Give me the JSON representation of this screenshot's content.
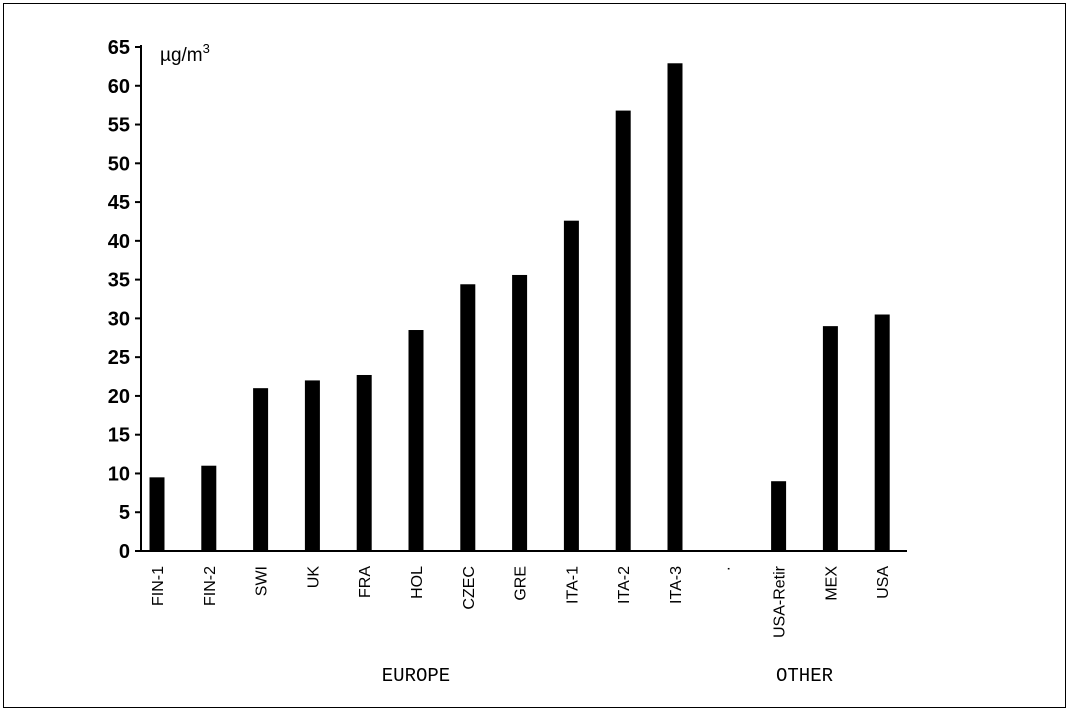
{
  "chart_data": {
    "type": "bar",
    "unit_label": "µg/m",
    "unit_superscript": "3",
    "ylim": [
      0,
      65
    ],
    "yticks": [
      "0",
      "5",
      "10",
      "15",
      "20",
      "25",
      "30",
      "35",
      "40",
      "45",
      "50",
      "55",
      "60",
      "65"
    ],
    "categories": [
      "FIN-1",
      "FIN-2",
      "SWI",
      "UK",
      "FRA",
      "HOL",
      "CZEC",
      "GRE",
      "ITA-1",
      "ITA-2",
      "ITA-3",
      "·",
      "USA-Retir",
      "MEX",
      "USA"
    ],
    "values": [
      9.5,
      11,
      21,
      22,
      22.7,
      28.5,
      34.4,
      35.6,
      42.6,
      56.8,
      62.9,
      null,
      9,
      29,
      30.5
    ],
    "groups": [
      {
        "label": "EUROPE",
        "span": [
          0,
          10
        ]
      },
      {
        "label": "OTHER",
        "span": [
          11,
          14
        ]
      }
    ],
    "bar_color": "#000000",
    "grid": false,
    "legend": "none"
  }
}
